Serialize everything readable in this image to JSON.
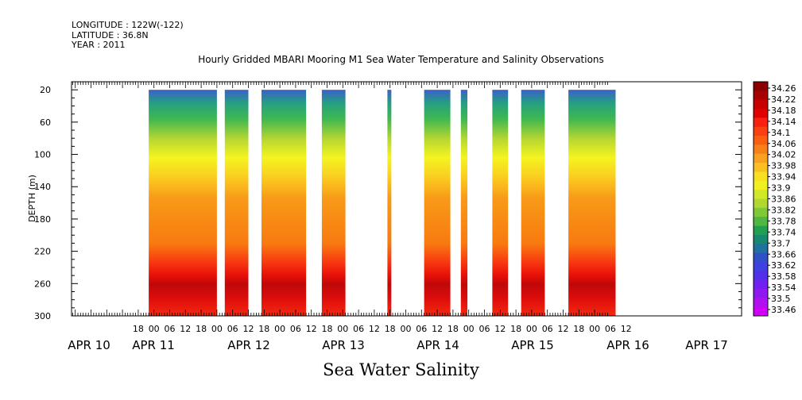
{
  "meta": {
    "longitude": "LONGITUDE : 122W(-122)",
    "latitude": "LATITUDE : 36.8N",
    "year": "YEAR : 2011"
  },
  "chart_data": {
    "type": "heatmap",
    "title": "Hourly Gridded MBARI Mooring M1 Sea Water Temperature and Salinity Observations",
    "xlabel": "Sea Water Salinity",
    "ylabel": "DEPTH (m)",
    "ylim": [
      300,
      10
    ],
    "xlim": [
      "APR 10 12:00",
      "APR 17 16:00"
    ],
    "y_ticks": [
      20,
      60,
      100,
      140,
      180,
      220,
      260,
      300
    ],
    "x_hour_ticks": [
      "18",
      "00",
      "06",
      "12",
      "18",
      "00",
      "06",
      "12",
      "18",
      "00",
      "06",
      "12",
      "18",
      "00",
      "06",
      "12",
      "18",
      "00",
      "06",
      "12",
      "18",
      "00",
      "06",
      "12",
      "18",
      "00",
      "06",
      "12",
      "18",
      "00",
      "06",
      "12"
    ],
    "x_day_labels": [
      "APR 10",
      "APR 11",
      "APR 12",
      "APR 13",
      "APR 14",
      "APR 15",
      "APR 16",
      "APR 17"
    ],
    "colorbar_levels": [
      "34.26",
      "34.22",
      "34.18",
      "34.14",
      "34.1",
      "34.06",
      "34.02",
      "33.98",
      "33.94",
      "33.9",
      "33.86",
      "33.82",
      "33.78",
      "33.74",
      "33.7",
      "33.66",
      "33.62",
      "33.58",
      "33.54",
      "33.5",
      "33.46"
    ],
    "data_segments_hours": [
      [
        22,
        48
      ],
      [
        51,
        60
      ],
      [
        65,
        82
      ],
      [
        88,
        97
      ],
      [
        113,
        114.5
      ],
      [
        127,
        137
      ],
      [
        141,
        143.5
      ],
      [
        153,
        159
      ],
      [
        164,
        173
      ],
      [
        182,
        200
      ]
    ],
    "depth_profile": [
      {
        "depth": 20,
        "salinity": 33.66
      },
      {
        "depth": 40,
        "salinity": 33.76
      },
      {
        "depth": 60,
        "salinity": 33.86
      },
      {
        "depth": 80,
        "salinity": 33.96
      },
      {
        "depth": 100,
        "salinity": 34.0
      },
      {
        "depth": 120,
        "salinity": 34.04
      },
      {
        "depth": 140,
        "salinity": 34.07
      },
      {
        "depth": 180,
        "salinity": 34.09
      },
      {
        "depth": 210,
        "salinity": 34.12
      },
      {
        "depth": 230,
        "salinity": 34.18
      },
      {
        "depth": 250,
        "salinity": 34.22
      },
      {
        "depth": 270,
        "salinity": 34.2
      },
      {
        "depth": 300,
        "salinity": 34.15
      }
    ]
  }
}
